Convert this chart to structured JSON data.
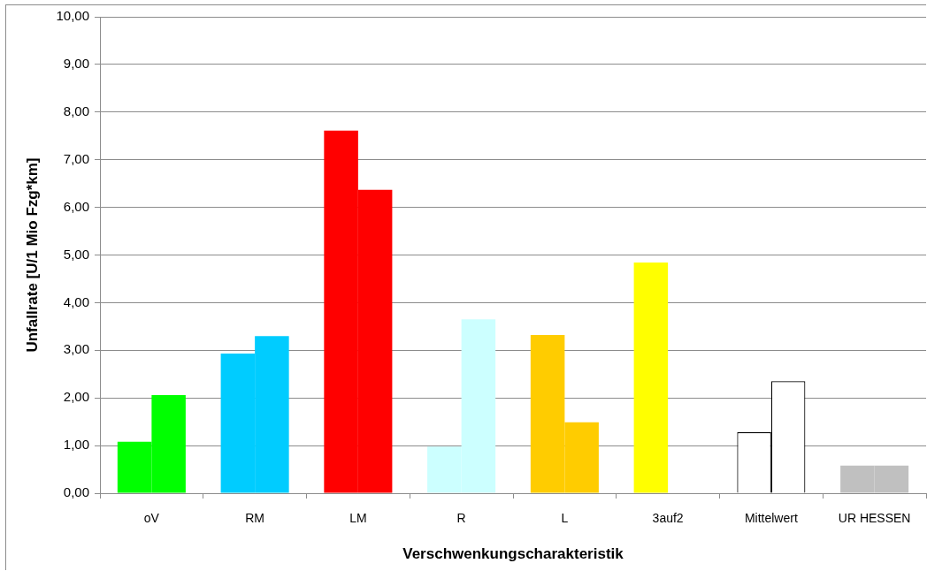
{
  "chart_data": {
    "type": "bar",
    "xlabel": "Verschwenkungscharakteristik",
    "ylabel": "Unfallrate [U/1 Mio Fzg*km]",
    "categories": [
      "oV",
      "RM",
      "LM",
      "R",
      "L",
      "3auf2",
      "Mittelwert",
      "UR HESSEN"
    ],
    "series": [
      {
        "colors": [
          "#00ff00",
          "#00ccff",
          "#ff0000",
          "#ccffff",
          "#ffcc00",
          "#ffff00",
          "#ffffff",
          "#c0c0c0"
        ],
        "values": [
          1.08,
          2.93,
          7.61,
          0.98,
          3.32,
          4.84,
          1.28,
          0.58
        ]
      },
      {
        "colors": [
          "#00ff00",
          "#00ccff",
          "#ff0000",
          "#ccffff",
          "#ffcc00",
          "#ffff00",
          "#ffffff",
          "#c0c0c0"
        ],
        "values": [
          2.06,
          3.3,
          6.37,
          3.65,
          1.49,
          null,
          2.35,
          0.58
        ]
      }
    ],
    "ylim": [
      0,
      10
    ],
    "yticks": [
      {
        "value": 0,
        "label": "0,00"
      },
      {
        "value": 1,
        "label": "1,00"
      },
      {
        "value": 2,
        "label": "2,00"
      },
      {
        "value": 3,
        "label": "3,00"
      },
      {
        "value": 4,
        "label": "4,00"
      },
      {
        "value": 5,
        "label": "5,00"
      },
      {
        "value": 6,
        "label": "6,00"
      },
      {
        "value": 7,
        "label": "7,00"
      },
      {
        "value": 8,
        "label": "8,00"
      },
      {
        "value": 9,
        "label": "9,00"
      },
      {
        "value": 10,
        "label": "10,00"
      }
    ],
    "grid": "y",
    "legend": false
  }
}
